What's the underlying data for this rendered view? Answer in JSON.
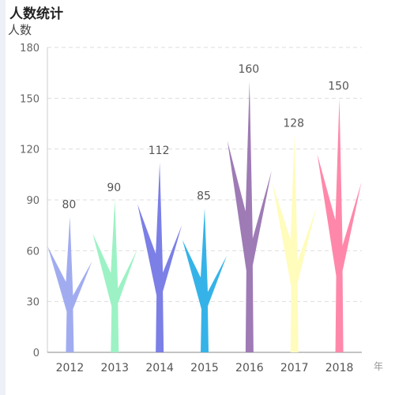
{
  "title": "人数统计",
  "chart_data": {
    "type": "bar",
    "title": "人数统计",
    "ylabel": "人数",
    "xlabel": "年",
    "categories": [
      "2012",
      "2013",
      "2014",
      "2015",
      "2016",
      "2017",
      "2018"
    ],
    "values": [
      80,
      90,
      112,
      85,
      160,
      128,
      150
    ],
    "ylim": [
      0,
      180
    ],
    "yticks": [
      0,
      30,
      60,
      90,
      120,
      150,
      180
    ],
    "grid": true,
    "bar_style": "tree-branch",
    "colors": [
      "#a1acf0",
      "#9cf2c4",
      "#7b7fe6",
      "#35b3e8",
      "#9e7bb5",
      "#fffcbc",
      "#ff88aa"
    ]
  }
}
